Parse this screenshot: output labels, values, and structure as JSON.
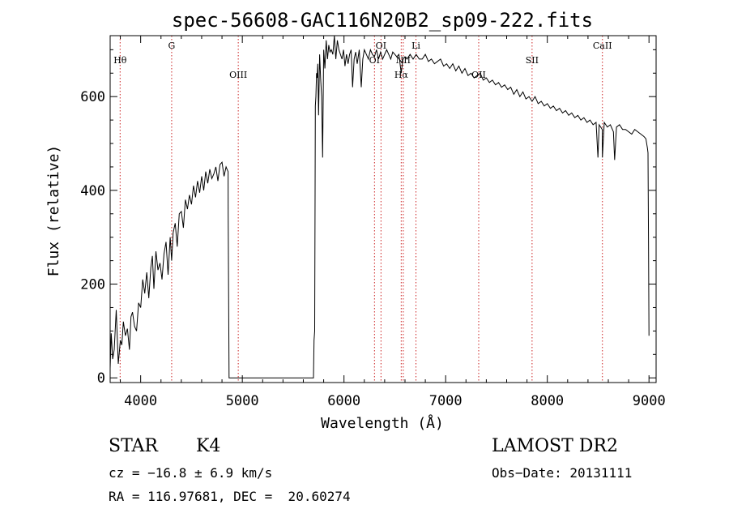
{
  "chart_data": {
    "type": "line",
    "title": "spec-56608-GAC116N20B2_sp09-222.fits",
    "xlabel": "Wavelength (Å)",
    "ylabel": "Flux (relative)",
    "xlim": [
      3700,
      9070
    ],
    "ylim": [
      -10,
      730
    ],
    "xticks": [
      4000,
      5000,
      6000,
      7000,
      8000,
      9000
    ],
    "yticks": [
      0,
      200,
      400,
      600
    ],
    "grid": false,
    "line_color": "#000000",
    "marker_color": "#cc2222",
    "line_markers": [
      {
        "label": "Hθ",
        "x": 3798
      },
      {
        "label": "G",
        "x": 4305
      },
      {
        "label": "OIII",
        "x": 4960
      },
      {
        "label": "OI",
        "x": 6300
      },
      {
        "label": "OI",
        "x": 6364
      },
      {
        "label": "Hα",
        "x": 6563
      },
      {
        "label": "NII",
        "x": 6583
      },
      {
        "label": "Li",
        "x": 6708
      },
      {
        "label": "OII",
        "x": 7325
      },
      {
        "label": "SII",
        "x": 7850
      },
      {
        "label": "CaII",
        "x": 8542
      }
    ],
    "series": [
      {
        "x": [
          3700,
          3710,
          3725,
          3740,
          3760,
          3780,
          3800,
          3815,
          3830,
          3850,
          3870,
          3890,
          3905,
          3920,
          3940,
          3960,
          3980,
          4000,
          4020,
          4040,
          4060,
          4080,
          4100,
          4115,
          4130,
          4150,
          4170,
          4190,
          4210,
          4230,
          4250,
          4270,
          4290,
          4305,
          4320,
          4340,
          4360,
          4380,
          4400,
          4420,
          4440,
          4460,
          4480,
          4500,
          4520,
          4540,
          4560,
          4580,
          4600,
          4620,
          4640,
          4660,
          4680,
          4700,
          4720,
          4740,
          4760,
          4780,
          4800,
          4820,
          4840,
          4850,
          4860,
          4861,
          4870,
          5700,
          5705,
          5712,
          5718,
          5724,
          5730,
          5736,
          5742,
          5750,
          5760,
          5770,
          5780,
          5790,
          5800,
          5812,
          5825,
          5838,
          5850,
          5862,
          5875,
          5890,
          5905,
          5920,
          5935,
          5950,
          5965,
          5980,
          5995,
          6010,
          6025,
          6040,
          6055,
          6070,
          6085,
          6100,
          6115,
          6130,
          6150,
          6170,
          6185,
          6200,
          6220,
          6240,
          6260,
          6280,
          6300,
          6320,
          6340,
          6360,
          6380,
          6400,
          6420,
          6440,
          6460,
          6480,
          6500,
          6520,
          6540,
          6563,
          6580,
          6600,
          6620,
          6650,
          6680,
          6710,
          6740,
          6770,
          6800,
          6830,
          6860,
          6890,
          6920,
          6950,
          6980,
          7010,
          7040,
          7070,
          7100,
          7130,
          7160,
          7190,
          7220,
          7250,
          7280,
          7310,
          7340,
          7370,
          7400,
          7430,
          7460,
          7490,
          7520,
          7550,
          7580,
          7610,
          7640,
          7670,
          7700,
          7730,
          7760,
          7790,
          7820,
          7850,
          7880,
          7910,
          7940,
          7970,
          8000,
          8030,
          8060,
          8090,
          8120,
          8150,
          8180,
          8210,
          8240,
          8270,
          8300,
          8330,
          8360,
          8390,
          8420,
          8450,
          8480,
          8498,
          8510,
          8540,
          8542,
          8560,
          8590,
          8620,
          8650,
          8662,
          8680,
          8710,
          8740,
          8770,
          8800,
          8830,
          8860,
          8890,
          8920,
          8950,
          8970,
          8985,
          8990,
          8995,
          9000
        ],
        "y": [
          20,
          95,
          40,
          60,
          145,
          30,
          80,
          70,
          120,
          90,
          105,
          60,
          130,
          140,
          110,
          100,
          160,
          150,
          210,
          180,
          225,
          170,
          235,
          260,
          190,
          270,
          230,
          245,
          210,
          265,
          290,
          220,
          300,
          250,
          310,
          330,
          280,
          350,
          355,
          320,
          380,
          360,
          390,
          370,
          410,
          385,
          420,
          395,
          430,
          400,
          440,
          415,
          445,
          425,
          435,
          450,
          420,
          455,
          460,
          430,
          450,
          445,
          440,
          350,
          0,
          0,
          80,
          100,
          580,
          600,
          650,
          640,
          670,
          560,
          690,
          640,
          600,
          470,
          700,
          660,
          720,
          680,
          710,
          695,
          700,
          690,
          730,
          680,
          720,
          700,
          690,
          680,
          700,
          665,
          690,
          670,
          690,
          700,
          620,
          680,
          695,
          670,
          700,
          620,
          680,
          700,
          690,
          680,
          700,
          690,
          685,
          700,
          680,
          695,
          680,
          690,
          700,
          690,
          680,
          695,
          690,
          685,
          690,
          650,
          680,
          685,
          680,
          690,
          680,
          690,
          680,
          680,
          690,
          675,
          680,
          670,
          675,
          680,
          665,
          670,
          660,
          670,
          655,
          665,
          650,
          660,
          645,
          650,
          640,
          645,
          650,
          635,
          640,
          630,
          635,
          625,
          630,
          620,
          625,
          615,
          620,
          605,
          615,
          600,
          610,
          595,
          600,
          590,
          600,
          585,
          590,
          580,
          585,
          575,
          580,
          570,
          575,
          565,
          570,
          560,
          565,
          555,
          560,
          550,
          555,
          545,
          550,
          540,
          545,
          470,
          540,
          530,
          470,
          545,
          535,
          540,
          525,
          465,
          535,
          540,
          530,
          530,
          525,
          520,
          530,
          525,
          520,
          515,
          510,
          490,
          480,
          300,
          90
        ]
      }
    ]
  },
  "info": {
    "object_class": "STAR",
    "subclass": "K4",
    "survey": "LAMOST DR2",
    "redshift": "cz = −16.8 ± 6.9 km/s",
    "obs_date": "Obs−Date: 20131111",
    "coords": "RA = 116.97681, DEC =  20.60274"
  }
}
